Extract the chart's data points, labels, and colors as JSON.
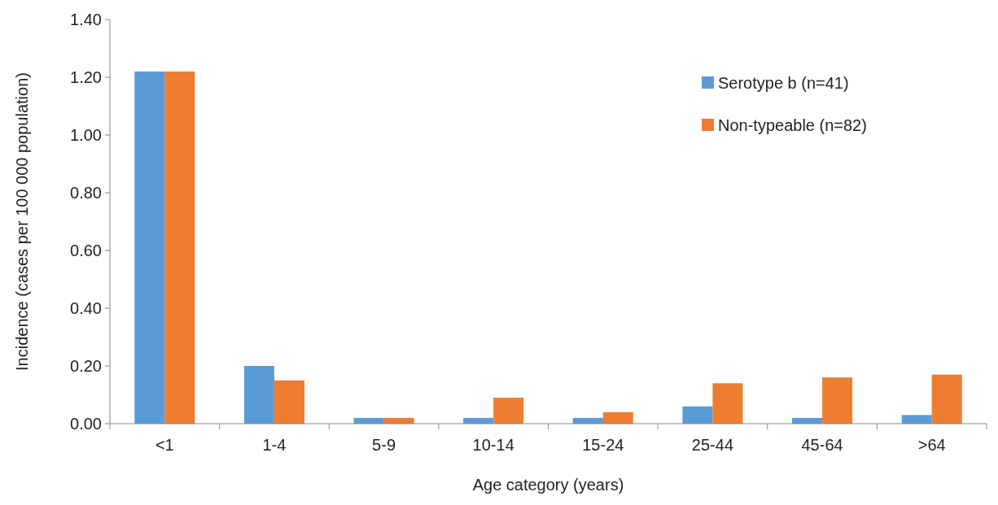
{
  "chart_data": {
    "type": "bar",
    "xlabel": "Age category (years)",
    "ylabel": "Incidence (cases per 100 000 population)",
    "categories": [
      "<1",
      "1-4",
      "5-9",
      "10-14",
      "15-24",
      "25-44",
      "45-64",
      ">64"
    ],
    "series": [
      {
        "name": "Serotype b (n=41)",
        "color": "#5b9bd5",
        "values": [
          1.22,
          0.2,
          0.02,
          0.02,
          0.02,
          0.06,
          0.02,
          0.03
        ]
      },
      {
        "name": "Non-typeable (n=82)",
        "color": "#ed7d31",
        "values": [
          1.22,
          0.15,
          0.02,
          0.09,
          0.04,
          0.14,
          0.16,
          0.17
        ]
      }
    ],
    "ylim": [
      0,
      1.4
    ],
    "yticks": [
      {
        "value": 0,
        "label": "0.00"
      },
      {
        "value": 0.2,
        "label": "0.20"
      },
      {
        "value": 0.4,
        "label": "0.40"
      },
      {
        "value": 0.6,
        "label": "0.60"
      },
      {
        "value": 0.8,
        "label": "0.80"
      },
      {
        "value": 1,
        "label": "1.00"
      },
      {
        "value": 1.2,
        "label": "1.20"
      },
      {
        "value": 1.4,
        "label": "1.40"
      }
    ],
    "grid": false,
    "legend": "top right"
  }
}
